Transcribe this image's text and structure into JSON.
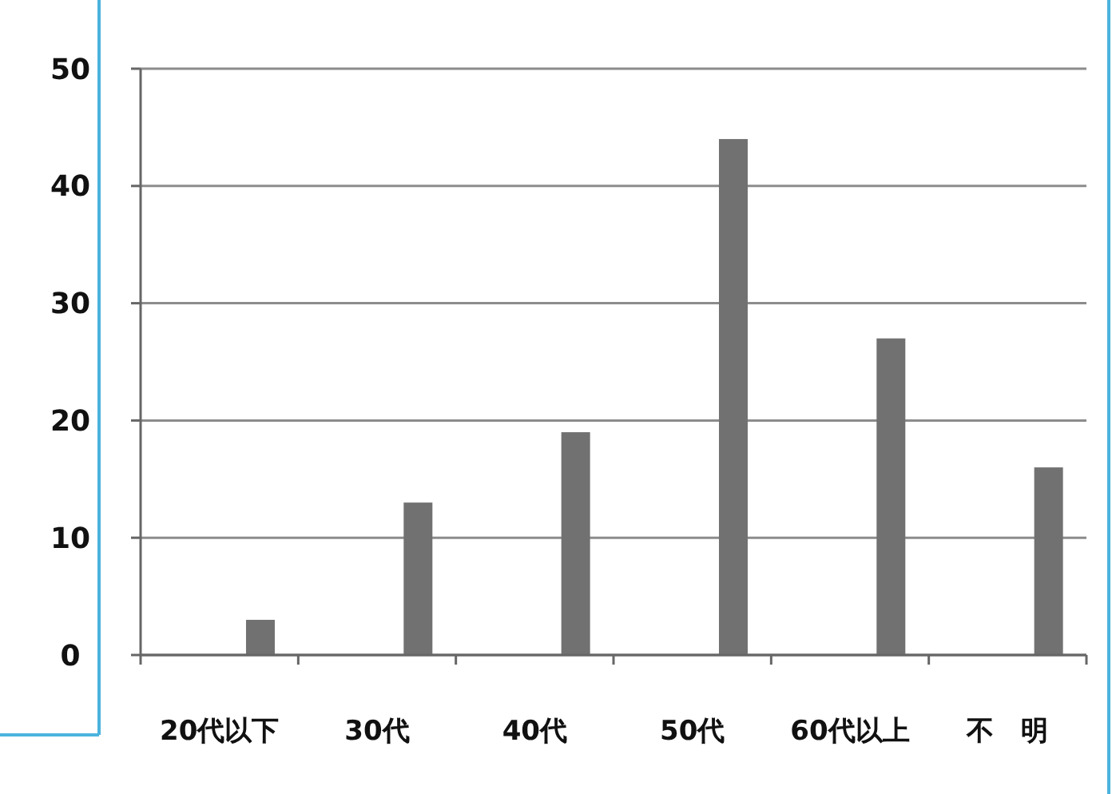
{
  "chart_data": {
    "type": "bar",
    "categories": [
      "20代以下",
      "30代",
      "40代",
      "50代",
      "60代以上",
      "不　明"
    ],
    "values": [
      3,
      13,
      19,
      44,
      27,
      16
    ],
    "color": "#717171",
    "ylim": [
      0,
      50
    ],
    "yticks": [
      0,
      10,
      20,
      30,
      40,
      50
    ],
    "grid": "y"
  }
}
